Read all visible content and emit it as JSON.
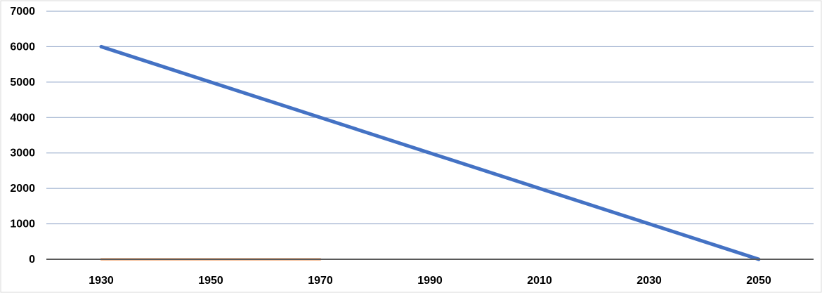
{
  "chart_data": {
    "type": "line",
    "title": "",
    "xlabel": "",
    "ylabel": "",
    "x_ticks": [
      "1930",
      "1950",
      "1970",
      "1990",
      "2010",
      "2030",
      "2050"
    ],
    "y_ticks": [
      "0",
      "1000",
      "2000",
      "3000",
      "4000",
      "5000",
      "6000",
      "7000"
    ],
    "xlim": [
      1920,
      2060
    ],
    "ylim": [
      0,
      7000
    ],
    "grid": true,
    "legend": "none",
    "series": [
      {
        "color": "#4472C4",
        "x": [
          1930,
          2050
        ],
        "y": [
          6000,
          0
        ]
      },
      {
        "color": "#ED7D31",
        "x": [
          1930,
          1970
        ],
        "y": [
          0,
          0
        ]
      }
    ],
    "colors": {
      "gridline": "#8EA3C6",
      "axis": "#595959",
      "frame": "#D9D9D9"
    }
  }
}
